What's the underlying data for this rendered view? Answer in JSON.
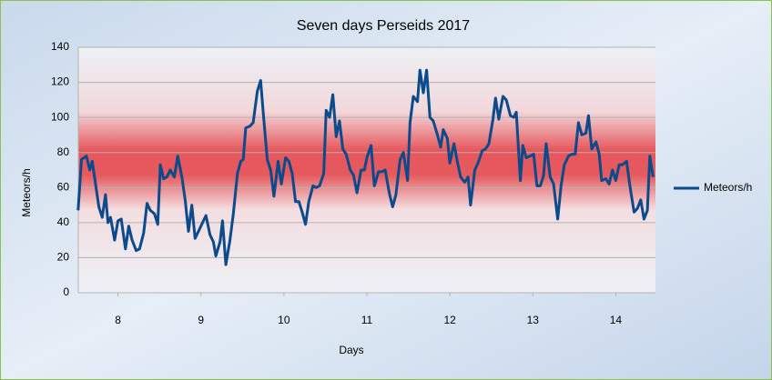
{
  "chart_data": {
    "type": "line",
    "title": "Seven days Perseids 2017",
    "x_label": "Days",
    "y_label": "Meteors/h",
    "x": [
      8.02,
      8.06,
      8.12,
      8.16,
      8.19,
      8.22,
      8.27,
      8.31,
      8.35,
      8.38,
      8.41,
      8.46,
      8.5,
      8.54,
      8.59,
      8.63,
      8.67,
      8.72,
      8.76,
      8.81,
      8.85,
      8.89,
      8.94,
      8.98,
      9.01,
      9.05,
      9.09,
      9.13,
      9.18,
      9.22,
      9.27,
      9.31,
      9.35,
      9.39,
      9.43,
      9.47,
      9.52,
      9.56,
      9.61,
      9.65,
      9.68,
      9.73,
      9.76,
      9.8,
      9.85,
      9.89,
      9.94,
      9.98,
      10.01,
      10.04,
      10.09,
      10.13,
      10.18,
      10.22,
      10.25,
      10.3,
      10.34,
      10.38,
      10.43,
      10.47,
      10.52,
      10.56,
      10.6,
      10.64,
      10.68,
      10.72,
      10.76,
      10.8,
      10.85,
      10.89,
      10.93,
      10.98,
      11.01,
      11.05,
      11.09,
      11.13,
      11.17,
      11.21,
      11.25,
      11.3,
      11.34,
      11.38,
      11.43,
      11.47,
      11.5,
      11.55,
      11.59,
      11.64,
      11.68,
      11.72,
      11.77,
      11.81,
      11.85,
      11.9,
      11.94,
      11.99,
      12.02,
      12.06,
      12.11,
      12.14,
      12.18,
      12.22,
      12.26,
      12.3,
      12.35,
      12.39,
      12.42,
      12.47,
      12.5,
      12.55,
      12.59,
      12.63,
      12.68,
      12.72,
      12.75,
      12.8,
      12.84,
      12.89,
      12.93,
      12.97,
      13.02,
      13.05,
      13.09,
      13.14,
      13.18,
      13.23,
      13.27,
      13.3,
      13.35,
      13.38,
      13.42,
      13.47,
      13.51,
      13.55,
      13.59,
      13.63,
      13.66,
      13.71,
      13.75,
      13.8,
      13.84,
      13.88,
      13.93,
      13.97,
      14.01,
      14.05,
      14.09,
      14.14,
      14.17,
      14.21,
      14.26,
      14.3,
      14.33,
      14.38,
      14.42,
      14.46,
      14.5,
      14.54,
      14.58,
      14.63,
      14.67,
      14.72,
      14.76,
      14.8,
      14.84,
      14.88,
      14.91,
      14.95
    ],
    "series": [
      {
        "name": "Meteors/h",
        "color": "#0b4a8b",
        "values": [
          47,
          76,
          78,
          70,
          75,
          65,
          49,
          43,
          56,
          40,
          43,
          30,
          41,
          42,
          25,
          38,
          30,
          24,
          25,
          34,
          51,
          47,
          45,
          39,
          73,
          65,
          66,
          70,
          66,
          78,
          66,
          53,
          35,
          50,
          31,
          35,
          40,
          44,
          33,
          29,
          21,
          29,
          41,
          16,
          30,
          45,
          68,
          75,
          76,
          94,
          95,
          97,
          115,
          121,
          103,
          76,
          70,
          55,
          75,
          62,
          77,
          75,
          68,
          52,
          52,
          46,
          39,
          52,
          61,
          60,
          61,
          68,
          104,
          100,
          113,
          89,
          98,
          82,
          79,
          70,
          67,
          57,
          70,
          70,
          77,
          84,
          61,
          69,
          69,
          70,
          57,
          49,
          56,
          76,
          80,
          64,
          97,
          112,
          109,
          127,
          114,
          127,
          100,
          98,
          90,
          83,
          93,
          88,
          74,
          85,
          75,
          66,
          63,
          66,
          50,
          70,
          74,
          81,
          82,
          85,
          99,
          111,
          99,
          112,
          110,
          101,
          100,
          103,
          64,
          84,
          77,
          78,
          79,
          61,
          61,
          67,
          85,
          66,
          62,
          42,
          61,
          73,
          78,
          79,
          79,
          97,
          90,
          91,
          101,
          82,
          86,
          79,
          64,
          65,
          62,
          70,
          64,
          73,
          73,
          75,
          61,
          46,
          48,
          53,
          42,
          47,
          78,
          66
        ]
      }
    ],
    "xlim": [
      8,
      15
    ],
    "xticks": [
      {
        "value": 8.5,
        "label": "8"
      },
      {
        "value": 9.5,
        "label": "9"
      },
      {
        "value": 10.5,
        "label": "10"
      },
      {
        "value": 11.5,
        "label": "11"
      },
      {
        "value": 12.5,
        "label": "12"
      },
      {
        "value": 13.5,
        "label": "13"
      },
      {
        "value": 14.5,
        "label": "14"
      }
    ],
    "ylim": [
      0,
      140
    ],
    "yticks": [
      0,
      20,
      40,
      60,
      80,
      100,
      120,
      140
    ],
    "grid": true,
    "legend": "right"
  }
}
